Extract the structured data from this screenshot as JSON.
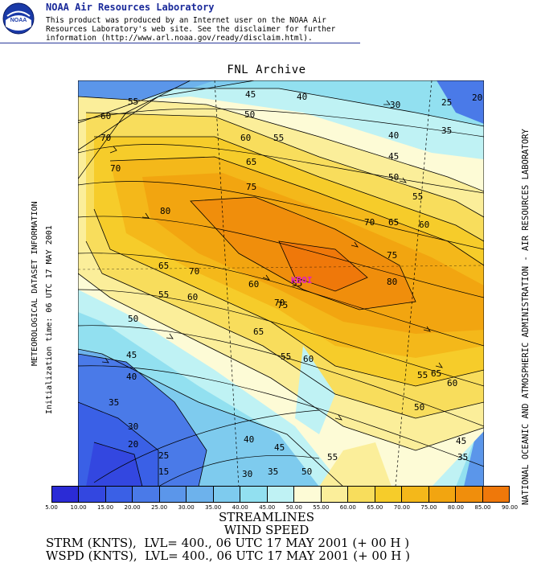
{
  "header": {
    "organization": "NOAA Air Resources Laboratory",
    "disclaimer": "This product was produced by an Internet user on the NOAA Air\nResources Laboratory's web site.  See the disclaimer for further\ninformation (http://www.arl.noaa.gov/ready/disclaim.html).",
    "logo_text": "NOAA"
  },
  "map": {
    "title": "FNL Archive",
    "marker_label": "KBOI",
    "marker_color": "#e020c0",
    "contour_labels": [
      "55",
      "45",
      "40",
      "30",
      "25",
      "20",
      "60",
      "50",
      "55",
      "70",
      "35",
      "70",
      "60",
      "65",
      "40",
      "80",
      "45",
      "75",
      "50",
      "55",
      "70",
      "65",
      "60",
      "65",
      "70",
      "75",
      "80",
      "55",
      "60",
      "60",
      "55",
      "65",
      "75",
      "70",
      "60",
      "50",
      "55",
      "45",
      "65",
      "40",
      "60",
      "55",
      "50",
      "45",
      "35",
      "30",
      "25",
      "20",
      "15",
      "40",
      "45",
      "35",
      "30",
      "50",
      "55",
      "35"
    ]
  },
  "side_labels": {
    "left_top": "METEOROLOGICAL DATASET INFORMATION",
    "left_bottom": "Initialization time: 06 UTC 17 MAY 2001",
    "right": "NATIONAL OCEANIC AND ATMOSPHERIC ADMINISTRATION - AIR RESOURCES LABORATORY"
  },
  "colorbar": {
    "labels": [
      "5.00",
      "10.00",
      "15.00",
      "20.00",
      "25.00",
      "30.00",
      "35.00",
      "40.00",
      "45.00",
      "50.00",
      "55.00",
      "60.00",
      "65.00",
      "70.00",
      "75.00",
      "80.00",
      "85.00",
      "90.00"
    ],
    "colors": [
      "#2b2bd6",
      "#3347e0",
      "#3a60e6",
      "#4a7ae8",
      "#5b96ea",
      "#6db2ec",
      "#7ecbee",
      "#92e0f0",
      "#bff2f4",
      "#fdfbd6",
      "#fbee9a",
      "#f8dd5c",
      "#f6cc2a",
      "#f4b81a",
      "#f2a510",
      "#f08e0c",
      "#ef780a"
    ]
  },
  "legend": {
    "line1": "STREAMLINES",
    "line2": "WIND SPEED",
    "strm": "STRM (KNTS),  LVL= 400., 06 UTC 17 MAY 2001 (+ 00 H )",
    "wspd": "WSPD (KNTS),  LVL= 400., 06 UTC 17 MAY 2001 (+ 00 H )"
  }
}
